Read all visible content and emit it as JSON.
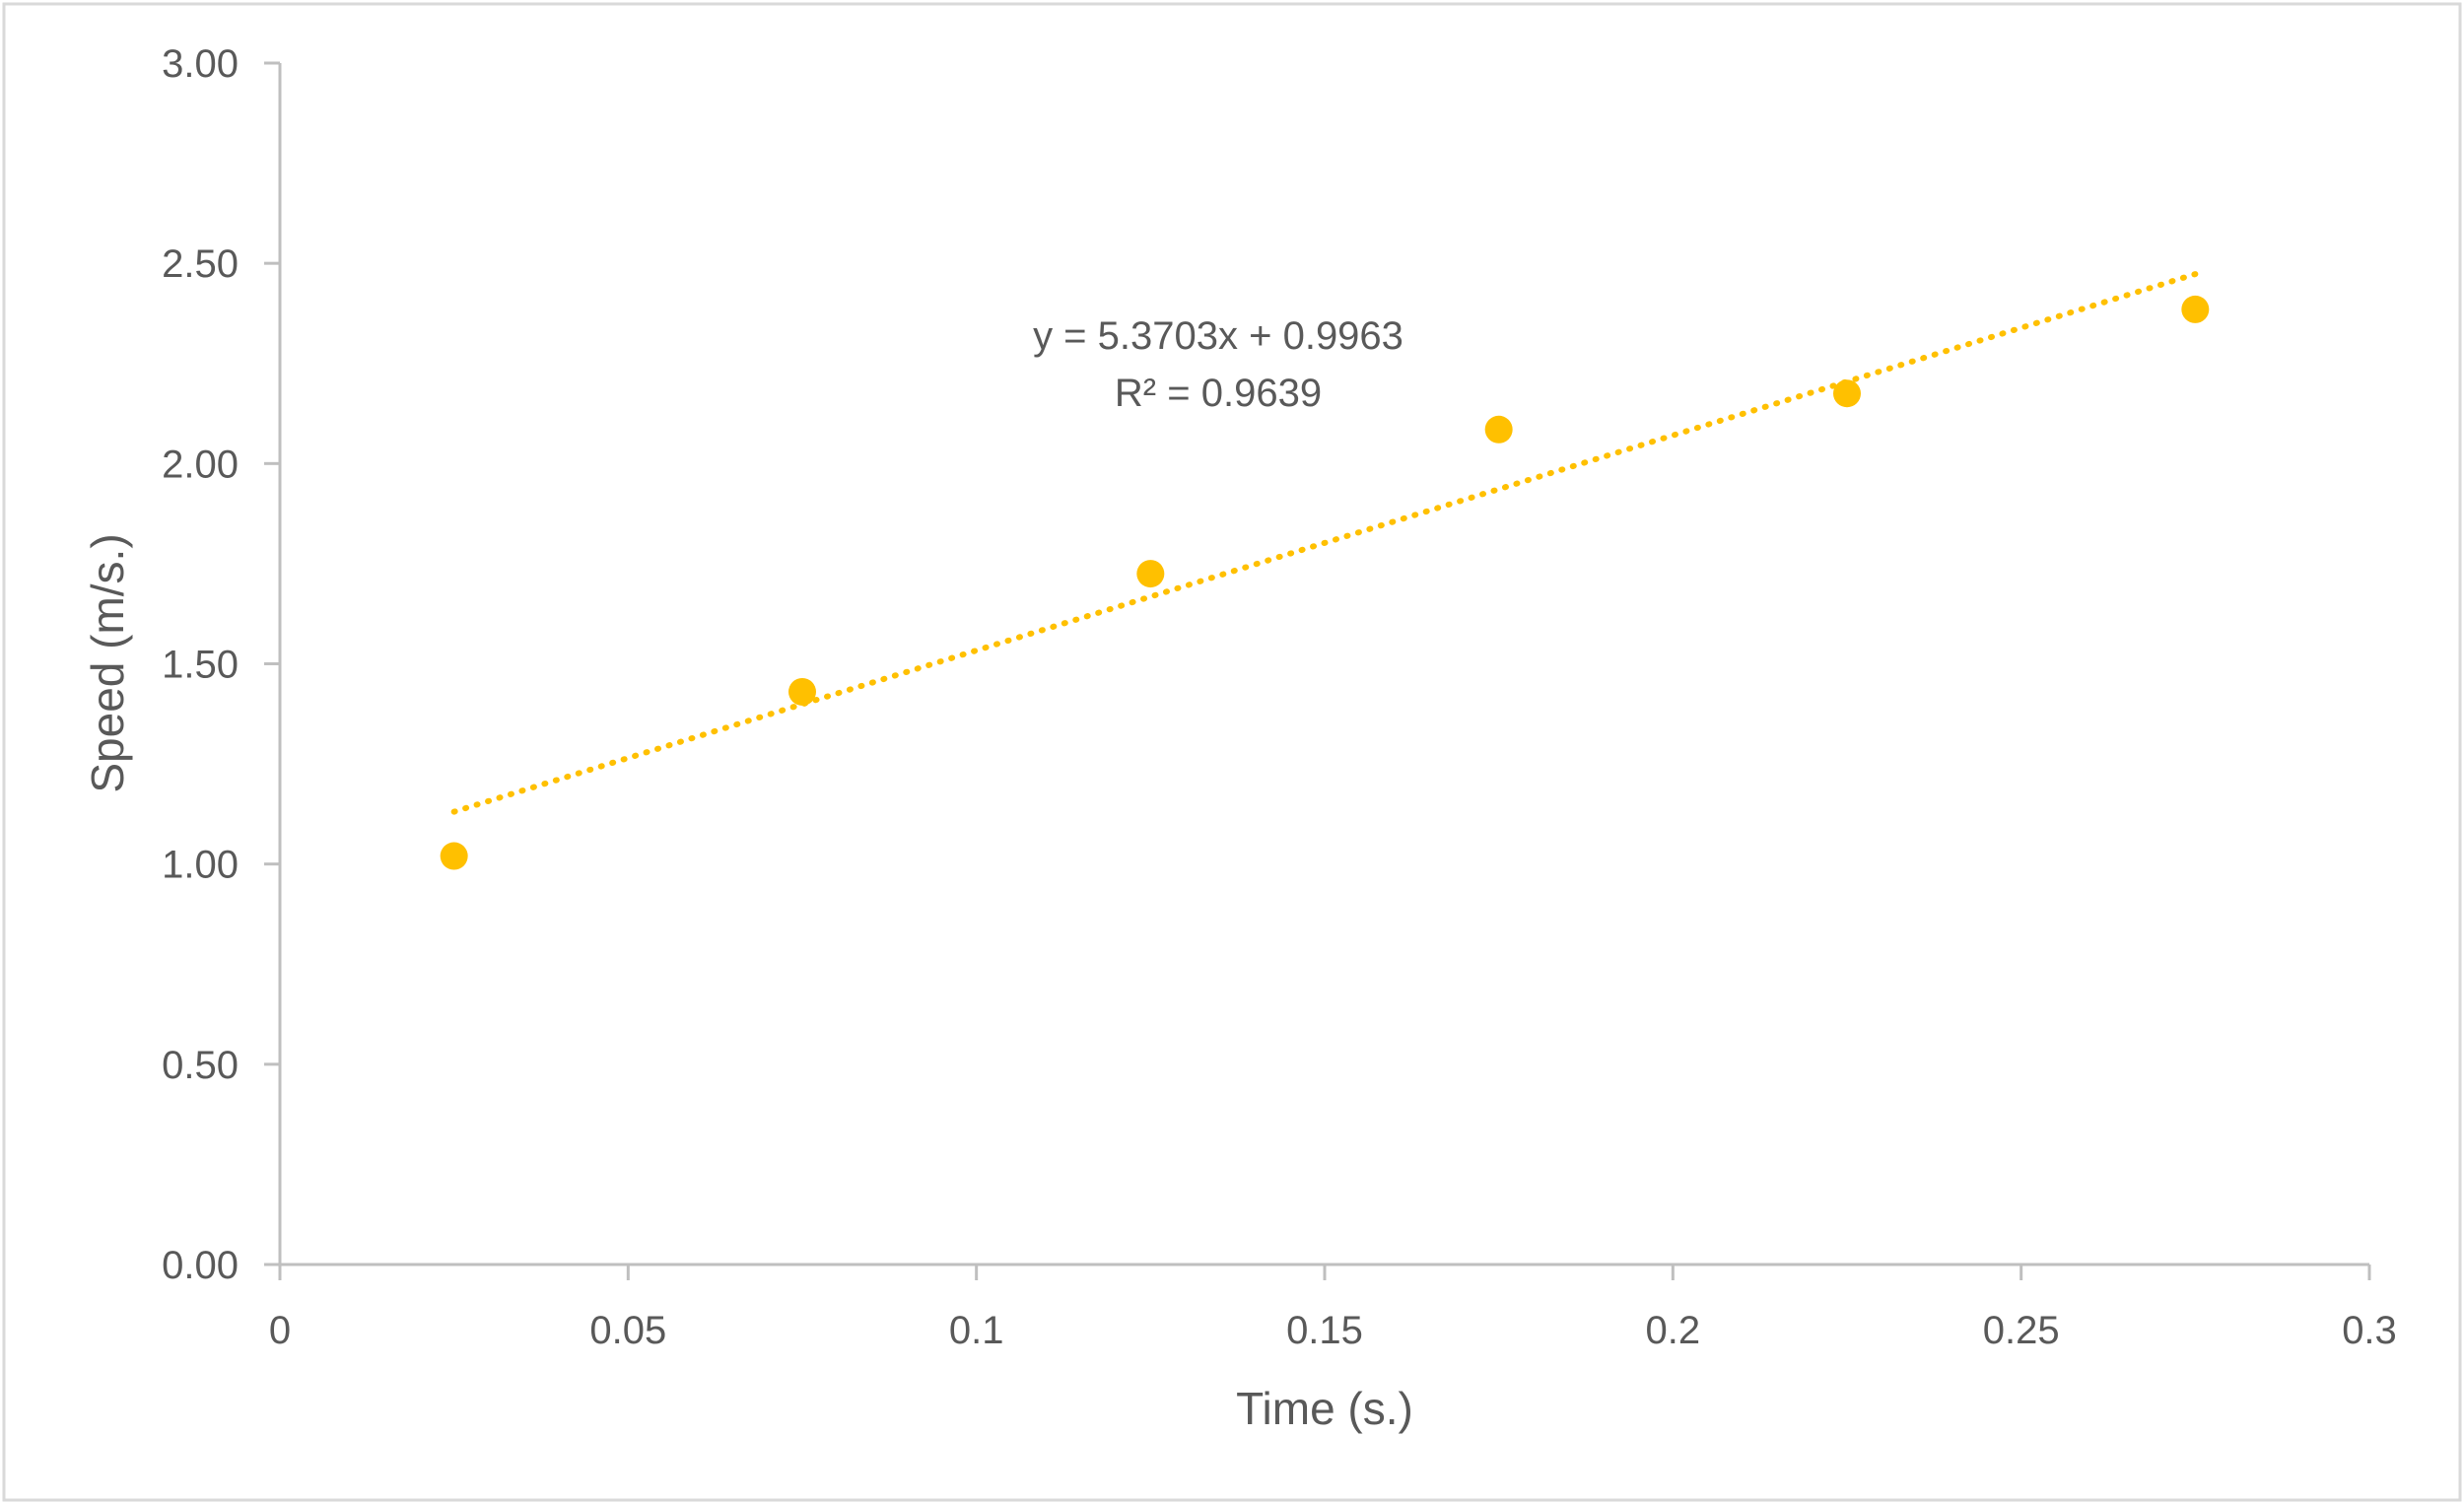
{
  "chart_data": {
    "type": "scatter",
    "title": "",
    "xlabel": "Time (s.)",
    "ylabel": "Speed (m/s.)",
    "xlim": [
      0,
      0.3
    ],
    "ylim": [
      0,
      3
    ],
    "x_ticks": [
      0,
      0.05,
      0.1,
      0.15,
      0.2,
      0.25,
      0.3
    ],
    "x_tick_labels": [
      "0",
      "0.05",
      "0.1",
      "0.15",
      "0.2",
      "0.25",
      "0.3"
    ],
    "y_ticks": [
      0,
      0.5,
      1,
      1.5,
      2,
      2.5,
      3
    ],
    "y_tick_labels": [
      "0.00",
      "0.50",
      "1.00",
      "1.50",
      "2.00",
      "2.50",
      "3.00"
    ],
    "grid": false,
    "legend": "none",
    "series": [
      {
        "x": [
          0.025,
          0.075,
          0.125,
          0.175,
          0.225,
          0.275
        ],
        "y": [
          1.02,
          1.43,
          1.725,
          2.085,
          2.175,
          2.385
        ],
        "color": "#FFC000"
      }
    ],
    "trendline": {
      "type": "linear",
      "slope": 5.3703,
      "intercept": 0.9963,
      "x_range": [
        0.025,
        0.275
      ],
      "style": "dotted",
      "color": "#FFC000",
      "equation_label": "y = 5.3703x + 0.9963",
      "r2_label": "R² = 0.9639"
    },
    "axis_color": "#BFBFBF",
    "text_color": "#595959"
  }
}
